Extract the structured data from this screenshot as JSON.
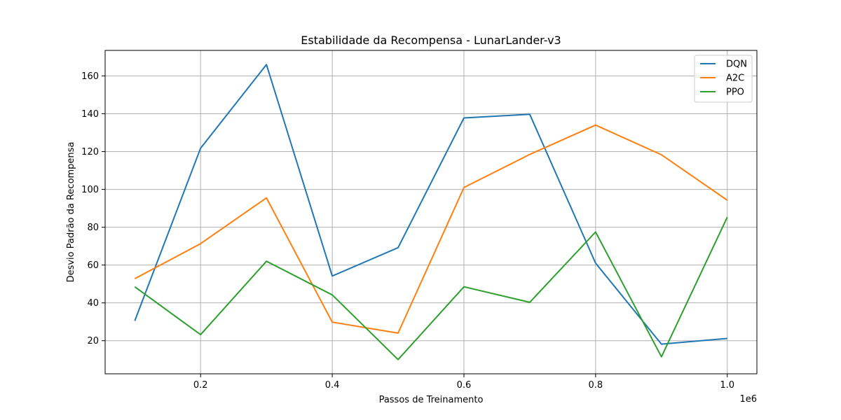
{
  "chart_data": {
    "type": "line",
    "title": "Estabilidade da Recompensa - LunarLander-v3",
    "xlabel": "Passos de Treinamento",
    "ylabel": "Desvio Padrão da Recompensa",
    "x_offset_label": "1e6",
    "x": [
      100000,
      200000,
      300000,
      400000,
      500000,
      600000,
      700000,
      800000,
      900000,
      1000000
    ],
    "x_ticks": [
      0.2,
      0.4,
      0.6,
      0.8,
      1.0
    ],
    "x_tick_labels": [
      "0.2",
      "0.4",
      "0.6",
      "0.8",
      "1.0"
    ],
    "y_ticks": [
      20,
      40,
      60,
      80,
      100,
      120,
      140,
      160
    ],
    "y_tick_labels": [
      "20",
      "40",
      "60",
      "80",
      "100",
      "120",
      "140",
      "160"
    ],
    "xlim": [
      55000,
      1045000
    ],
    "ylim": [
      2.5,
      173.5
    ],
    "grid": true,
    "legend_position": "top-right",
    "series": [
      {
        "name": "DQN",
        "color": "#1f77b4",
        "values": [
          30.5,
          121.8,
          166.0,
          54.2,
          69.2,
          137.8,
          139.7,
          61.0,
          18.2,
          21.2
        ]
      },
      {
        "name": "A2C",
        "color": "#ff7f0e",
        "values": [
          52.8,
          71.3,
          95.5,
          29.8,
          24.0,
          101.0,
          118.5,
          134.0,
          118.3,
          94.3
        ]
      },
      {
        "name": "PPO",
        "color": "#2ca02c",
        "values": [
          48.5,
          23.2,
          62.0,
          44.2,
          10.0,
          48.5,
          40.3,
          77.5,
          11.5,
          85.3
        ]
      }
    ]
  }
}
